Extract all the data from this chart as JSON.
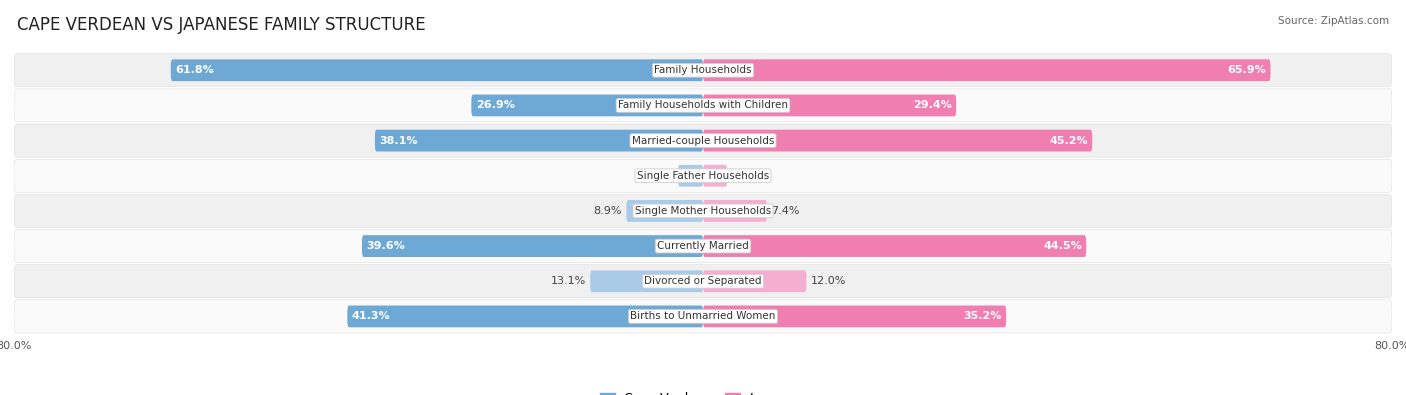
{
  "title": "CAPE VERDEAN VS JAPANESE FAMILY STRUCTURE",
  "source": "Source: ZipAtlas.com",
  "categories": [
    "Family Households",
    "Family Households with Children",
    "Married-couple Households",
    "Single Father Households",
    "Single Mother Households",
    "Currently Married",
    "Divorced or Separated",
    "Births to Unmarried Women"
  ],
  "cape_verdean": [
    61.8,
    26.9,
    38.1,
    2.9,
    8.9,
    39.6,
    13.1,
    41.3
  ],
  "japanese": [
    65.9,
    29.4,
    45.2,
    2.8,
    7.4,
    44.5,
    12.0,
    35.2
  ],
  "max_val": 80.0,
  "blue_color": "#6EA8D5",
  "pink_color": "#F07EB0",
  "blue_light": "#AACBE8",
  "pink_light": "#F5AED0",
  "bg_color": "#FFFFFF",
  "row_bg_even": "#F0F0F0",
  "row_bg_odd": "#FAFAFA",
  "title_fontsize": 12,
  "label_fontsize": 7.5,
  "value_fontsize": 8,
  "axis_label_fontsize": 8,
  "legend_fontsize": 9,
  "threshold_full_color": 15
}
